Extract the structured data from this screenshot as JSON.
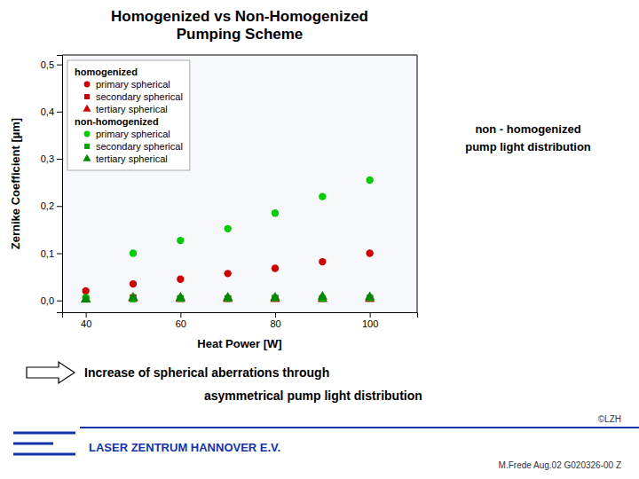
{
  "chart_data": {
    "type": "scatter",
    "title": "Homogenized vs Non-Homogenized\nPumping Scheme",
    "xlabel": "Heat Power [W]",
    "ylabel": "Zernike Coefficient [µm]",
    "xlim": [
      35,
      110
    ],
    "ylim": [
      -0.025,
      0.52
    ],
    "xticks": [
      40,
      60,
      80,
      100
    ],
    "yticks": [
      {
        "value": 0.0,
        "label": "0,0"
      },
      {
        "value": 0.1,
        "label": "0,1"
      },
      {
        "value": 0.2,
        "label": "0,2"
      },
      {
        "value": 0.3,
        "label": "0,3"
      },
      {
        "value": 0.4,
        "label": "0,4"
      },
      {
        "value": 0.5,
        "label": "0,5"
      }
    ],
    "grid": false,
    "legend": "upper left",
    "x": [
      40,
      50,
      60,
      70,
      80,
      90,
      100
    ],
    "series": [
      {
        "group": "homogenized",
        "name": "primary spherical",
        "color": "#cc0000",
        "marker": "circle",
        "values": [
          0.02,
          0.035,
          0.045,
          0.057,
          0.068,
          0.082,
          0.1
        ]
      },
      {
        "group": "homogenized",
        "name": "secondary spherical",
        "color": "#cc0000",
        "marker": "square",
        "values": [
          0.004,
          0.006,
          0.004,
          0.004,
          0.004,
          0.004,
          0.004
        ]
      },
      {
        "group": "homogenized",
        "name": "tertiary spherical",
        "color": "#cc0000",
        "marker": "triangle",
        "values": [
          0.002,
          0.004,
          0.003,
          0.003,
          0.003,
          0.003,
          0.003
        ]
      },
      {
        "group": "non-homogenized",
        "name": "primary spherical",
        "color": "#00cc00",
        "marker": "circle",
        "values": [
          0.006,
          0.1,
          0.127,
          0.152,
          0.185,
          0.22,
          0.255
        ]
      },
      {
        "group": "non-homogenized",
        "name": "secondary spherical",
        "color": "#00aa00",
        "marker": "square",
        "values": [
          0.003,
          0.003,
          0.004,
          0.004,
          0.005,
          0.004,
          0.005
        ]
      },
      {
        "group": "non-homogenized",
        "name": "tertiary spherical",
        "color": "#008800",
        "marker": "triangle",
        "values": [
          0.002,
          0.006,
          0.006,
          0.006,
          0.006,
          0.008,
          0.007
        ]
      }
    ],
    "side_text": [
      "non - homogenized",
      "pump light distribution"
    ],
    "annotations": [
      "Increase of spherical aberrations through",
      "asymmetrical pump light distribution"
    ],
    "footer_text": "LASER ZENTRUM HANNOVER E.V.",
    "copyright": "©LZH",
    "credits": "M.Frede  Aug.02  G020326-00 Z"
  }
}
